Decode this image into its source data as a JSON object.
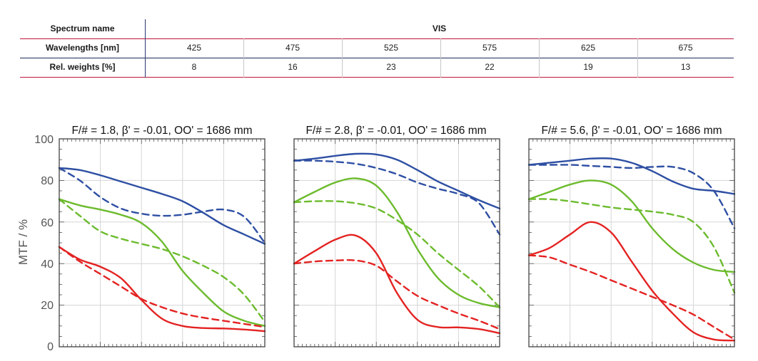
{
  "table": {
    "rows": [
      {
        "label": "Spectrum name",
        "cells": [
          "VIS"
        ]
      },
      {
        "label": "Wavelengths [nm]",
        "cells": [
          "425",
          "475",
          "525",
          "575",
          "625",
          "675"
        ]
      },
      {
        "label": "Rel. weights [%]",
        "cells": [
          "8",
          "16",
          "23",
          "22",
          "19",
          "13"
        ]
      }
    ]
  },
  "colors": {
    "blue": "#2e4fa3",
    "green": "#6cbb2d",
    "red": "#e32322",
    "table_rule": "#c0143c"
  },
  "chart_data": [
    {
      "type": "line",
      "title": "F/# = 1.8, β' = -0.01, OO' = 1686 mm",
      "ylabel": "MTF / %",
      "ylim": [
        0,
        100
      ],
      "yticks": [
        "0",
        "20",
        "40",
        "60",
        "80",
        "100"
      ],
      "xlim": [
        0,
        1
      ],
      "grid": true,
      "series": [
        {
          "color": "blue",
          "style": "solid",
          "x": [
            0,
            0.1,
            0.2,
            0.3,
            0.4,
            0.5,
            0.6,
            0.7,
            0.8,
            0.9,
            1.0
          ],
          "y": [
            86,
            85,
            82.5,
            79.5,
            76.5,
            73.5,
            70,
            64.5,
            58.5,
            54,
            49.5
          ]
        },
        {
          "color": "blue",
          "style": "dashed",
          "x": [
            0,
            0.1,
            0.2,
            0.3,
            0.4,
            0.5,
            0.6,
            0.7,
            0.8,
            0.9,
            1.0
          ],
          "y": [
            86,
            80,
            72,
            66.5,
            64,
            63,
            63.5,
            65,
            66,
            62.5,
            50
          ]
        },
        {
          "color": "green",
          "style": "solid",
          "x": [
            0,
            0.1,
            0.2,
            0.3,
            0.4,
            0.5,
            0.6,
            0.7,
            0.8,
            0.9,
            1.0
          ],
          "y": [
            71,
            68,
            66,
            63.5,
            59.5,
            50.5,
            36.5,
            26,
            17,
            12.5,
            10
          ]
        },
        {
          "color": "green",
          "style": "dashed",
          "x": [
            0,
            0.1,
            0.2,
            0.3,
            0.4,
            0.5,
            0.6,
            0.7,
            0.8,
            0.9,
            1.0
          ],
          "y": [
            71,
            63,
            55.5,
            52,
            49.5,
            47,
            43.5,
            39,
            33.5,
            25,
            12
          ]
        },
        {
          "color": "red",
          "style": "solid",
          "x": [
            0,
            0.1,
            0.2,
            0.3,
            0.4,
            0.5,
            0.6,
            0.7,
            0.8,
            0.9,
            1.0
          ],
          "y": [
            48,
            42,
            38.5,
            33,
            22.5,
            13.5,
            10,
            9,
            8.8,
            8.3,
            7.5
          ]
        },
        {
          "color": "red",
          "style": "dashed",
          "x": [
            0,
            0.1,
            0.2,
            0.3,
            0.4,
            0.5,
            0.6,
            0.7,
            0.8,
            0.9,
            1.0
          ],
          "y": [
            48,
            41,
            35,
            29,
            23,
            19,
            16,
            14,
            12.5,
            11,
            9.5
          ]
        }
      ]
    },
    {
      "type": "line",
      "title": "F/# = 2.8, β' = -0.01, OO' = 1686 mm",
      "ylim": [
        0,
        100
      ],
      "xlim": [
        0,
        1
      ],
      "grid": true,
      "series": [
        {
          "color": "blue",
          "style": "solid",
          "x": [
            0,
            0.1,
            0.2,
            0.3,
            0.4,
            0.5,
            0.6,
            0.7,
            0.8,
            0.9,
            1.0
          ],
          "y": [
            89.5,
            90.5,
            91.8,
            92.8,
            92.5,
            90,
            85,
            79.5,
            75,
            70.5,
            66.5
          ]
        },
        {
          "color": "blue",
          "style": "dashed",
          "x": [
            0,
            0.1,
            0.2,
            0.3,
            0.4,
            0.5,
            0.6,
            0.7,
            0.8,
            0.9,
            1.0
          ],
          "y": [
            89.5,
            89.5,
            89,
            88,
            86,
            83,
            79,
            76,
            73.5,
            69,
            54
          ]
        },
        {
          "color": "green",
          "style": "solid",
          "x": [
            0,
            0.1,
            0.2,
            0.3,
            0.4,
            0.5,
            0.6,
            0.7,
            0.8,
            0.9,
            1.0
          ],
          "y": [
            69.5,
            74.5,
            79,
            81,
            77.5,
            65,
            47,
            33,
            25,
            21,
            19
          ]
        },
        {
          "color": "green",
          "style": "dashed",
          "x": [
            0,
            0.1,
            0.2,
            0.3,
            0.4,
            0.5,
            0.6,
            0.7,
            0.8,
            0.9,
            1.0
          ],
          "y": [
            69.5,
            70,
            70,
            69,
            66.5,
            61,
            54,
            45,
            37,
            29,
            19
          ]
        },
        {
          "color": "red",
          "style": "solid",
          "x": [
            0,
            0.1,
            0.2,
            0.3,
            0.4,
            0.5,
            0.6,
            0.7,
            0.8,
            0.9,
            1.0
          ],
          "y": [
            40,
            46,
            51.5,
            53.5,
            45,
            26,
            13,
            9.5,
            9.3,
            8.5,
            6.5
          ]
        },
        {
          "color": "red",
          "style": "dashed",
          "x": [
            0,
            0.1,
            0.2,
            0.3,
            0.4,
            0.5,
            0.6,
            0.7,
            0.8,
            0.9,
            1.0
          ],
          "y": [
            40,
            41,
            41.5,
            41.5,
            39,
            31.5,
            24.5,
            20,
            16,
            12.5,
            8.5
          ]
        }
      ]
    },
    {
      "type": "line",
      "title": "F/# = 5.6, β' = -0.01, OO' = 1686 mm",
      "ylim": [
        0,
        100
      ],
      "xlim": [
        0,
        1
      ],
      "grid": true,
      "series": [
        {
          "color": "blue",
          "style": "solid",
          "x": [
            0,
            0.1,
            0.2,
            0.3,
            0.4,
            0.5,
            0.6,
            0.7,
            0.8,
            0.9,
            1.0
          ],
          "y": [
            87.5,
            88.5,
            89.5,
            90.5,
            90.5,
            88.5,
            84.5,
            79.5,
            76,
            75,
            73.5
          ]
        },
        {
          "color": "blue",
          "style": "dashed",
          "x": [
            0,
            0.1,
            0.2,
            0.3,
            0.4,
            0.5,
            0.6,
            0.7,
            0.8,
            0.9,
            1.0
          ],
          "y": [
            87.5,
            87.5,
            87.5,
            87,
            86.5,
            86,
            86.5,
            86.5,
            83.5,
            75,
            57
          ]
        },
        {
          "color": "green",
          "style": "solid",
          "x": [
            0,
            0.1,
            0.2,
            0.3,
            0.4,
            0.5,
            0.6,
            0.7,
            0.8,
            0.9,
            1.0
          ],
          "y": [
            71,
            74.5,
            78,
            80,
            78,
            70,
            57,
            47,
            40.5,
            37,
            36
          ]
        },
        {
          "color": "green",
          "style": "dashed",
          "x": [
            0,
            0.1,
            0.2,
            0.3,
            0.4,
            0.5,
            0.6,
            0.7,
            0.8,
            0.9,
            1.0
          ],
          "y": [
            71,
            71,
            70,
            68.5,
            67,
            66,
            65,
            63.5,
            60,
            48,
            26
          ]
        },
        {
          "color": "red",
          "style": "solid",
          "x": [
            0,
            0.1,
            0.2,
            0.3,
            0.4,
            0.5,
            0.6,
            0.7,
            0.8,
            0.9,
            1.0
          ],
          "y": [
            44,
            47.5,
            54,
            60,
            55,
            41,
            27,
            16,
            7,
            3.5,
            3
          ]
        },
        {
          "color": "red",
          "style": "dashed",
          "x": [
            0,
            0.1,
            0.2,
            0.3,
            0.4,
            0.5,
            0.6,
            0.7,
            0.8,
            0.9,
            1.0
          ],
          "y": [
            44,
            43,
            39.5,
            36,
            32,
            28,
            24,
            20,
            15.5,
            9.5,
            3.5
          ]
        }
      ]
    }
  ]
}
